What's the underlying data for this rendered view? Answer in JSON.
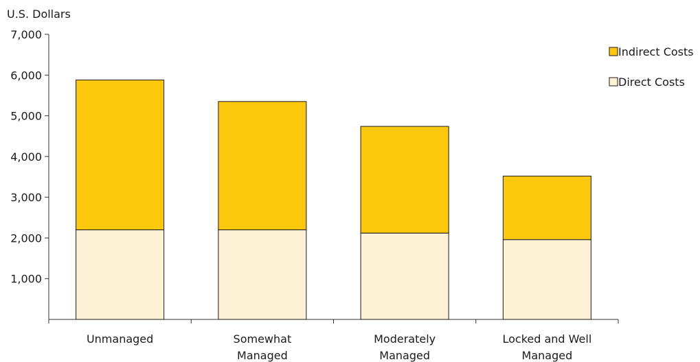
{
  "chart_data": {
    "type": "bar",
    "stacked": true,
    "ylabel": "U.S. Dollars",
    "ylim": [
      0,
      7000
    ],
    "yticks": [
      {
        "value": 1000,
        "label": "1,000"
      },
      {
        "value": 2000,
        "label": "2,000"
      },
      {
        "value": 3000,
        "label": "3,000"
      },
      {
        "value": 4000,
        "label": "4,000"
      },
      {
        "value": 5000,
        "label": "5,000"
      },
      {
        "value": 6000,
        "label": "6,000"
      },
      {
        "value": 7000,
        "label": "7,000"
      }
    ],
    "categories": [
      [
        "Unmanaged"
      ],
      [
        "Somewhat",
        "Managed"
      ],
      [
        "Moderately",
        "Managed"
      ],
      [
        "Locked and Well",
        "Managed"
      ]
    ],
    "series": [
      {
        "name": "Direct Costs",
        "color": "#fdf2d6",
        "values": [
          2200,
          2200,
          2120,
          1960
        ]
      },
      {
        "name": "Indirect Costs",
        "color": "#fdc70c",
        "values": [
          3680,
          3150,
          2620,
          1560
        ]
      }
    ],
    "legend": {
      "position": "top-right",
      "order": [
        "Indirect Costs",
        "Direct Costs"
      ]
    },
    "grid": false
  }
}
